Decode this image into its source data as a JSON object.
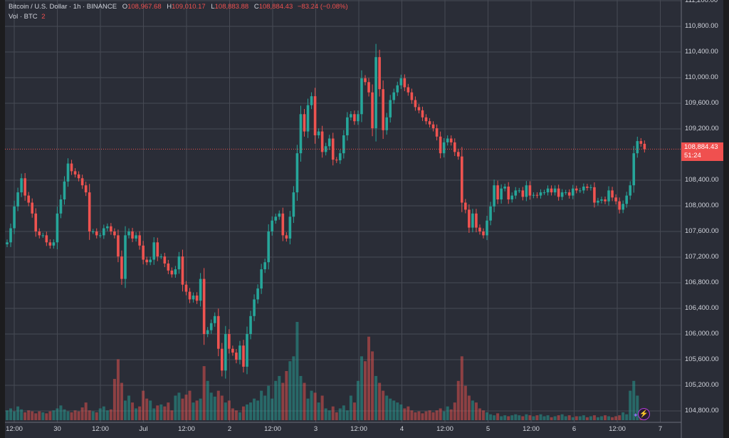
{
  "legend": {
    "symbol": "Bitcoin / U.S. Dollar · 1h · BINANCE",
    "o_label": "O",
    "o": "108,967.68",
    "h_label": "H",
    "h": "109,010.17",
    "l_label": "L",
    "l": "108,883.88",
    "c_label": "C",
    "c": "108,884.43",
    "change": "−83.24 (−0.08%)",
    "vol_label": "Vol · BTC",
    "vol_value": "2"
  },
  "price_tag": {
    "price": "108,884.43",
    "countdown": "51:24"
  },
  "colors": {
    "up": "#26a69a",
    "down": "#ef5350",
    "background": "#2a2d37",
    "grid": "#474a54",
    "assistant_icon": "#b13ad9"
  },
  "icons": {
    "assistant": "lightning-bolt-icon"
  },
  "chart_data": {
    "type": "candlestick",
    "interval": "1h",
    "grid": true,
    "y_ticks": [
      "111,200.00",
      "110,800.00",
      "110,400.00",
      "110,000.00",
      "109,600.00",
      "109,200.00",
      "108,400.00",
      "108,000.00",
      "107,600.00",
      "107,200.00",
      "106,800.00",
      "106,400.00",
      "106,000.00",
      "105,600.00",
      "105,200.00",
      "104,800.00"
    ],
    "x_ticks": [
      "12:00",
      "30",
      "12:00",
      "Jul",
      "12:00",
      "2",
      "12:00",
      "3",
      "12:00",
      "4",
      "12:00",
      "5",
      "12:00",
      "6",
      "12:00",
      "7"
    ],
    "ylim": [
      104600,
      111200
    ],
    "first_open": 107400,
    "close": [
      107430,
      107650,
      107990,
      108210,
      108430,
      108160,
      108050,
      107880,
      107600,
      107540,
      107540,
      107430,
      107380,
      107430,
      107880,
      108100,
      108380,
      108660,
      108540,
      108490,
      108430,
      108320,
      108210,
      107600,
      107600,
      107540,
      107540,
      107650,
      107680,
      107600,
      107540,
      107210,
      106860,
      107540,
      107600,
      107490,
      107540,
      107380,
      107160,
      107120,
      107160,
      107430,
      107210,
      107210,
      107100,
      106990,
      106930,
      107010,
      107210,
      106770,
      106660,
      106540,
      106600,
      106520,
      106860,
      106000,
      106060,
      106170,
      106280,
      105770,
      105430,
      106000,
      105770,
      105710,
      105600,
      105820,
      105490,
      106000,
      106280,
      106540,
      106710,
      107010,
      107120,
      107600,
      107770,
      107830,
      107880,
      107540,
      107490,
      107830,
      108210,
      108820,
      109430,
      109160,
      109570,
      109710,
      109100,
      109160,
      108840,
      108930,
      109050,
      108720,
      108710,
      108820,
      109100,
      109380,
      109430,
      109320,
      109430,
      109990,
      109930,
      109770,
      109210,
      110320,
      109820,
      109180,
      109380,
      109650,
      109770,
      109880,
      109990,
      109850,
      109770,
      109650,
      109540,
      109490,
      109380,
      109320,
      109270,
      109210,
      109080,
      108820,
      108990,
      109050,
      108990,
      108840,
      108770,
      108050,
      107940,
      107660,
      107880,
      107660,
      107600,
      107540,
      107770,
      107990,
      108320,
      108100,
      108270,
      108300,
      108100,
      108160,
      108240,
      108240,
      108140,
      108320,
      108160,
      108170,
      108160,
      108210,
      108210,
      108270,
      108210,
      108270,
      108140,
      108210,
      108210,
      108160,
      108270,
      108240,
      108240,
      108300,
      108280,
      108290,
      108050,
      108080,
      108100,
      108070,
      108240,
      108130,
      108070,
      107940,
      108030,
      108160,
      108320,
      108820,
      109010,
      108967.68,
      108884.43
    ],
    "volume_relative": [
      10,
      12,
      9,
      14,
      11,
      8,
      10,
      9,
      7,
      9,
      8,
      7,
      9,
      10,
      12,
      15,
      11,
      9,
      8,
      10,
      9,
      13,
      18,
      10,
      9,
      8,
      12,
      14,
      10,
      11,
      42,
      62,
      38,
      20,
      25,
      18,
      12,
      14,
      30,
      22,
      20,
      12,
      15,
      16,
      14,
      18,
      10,
      25,
      28,
      22,
      26,
      30,
      18,
      20,
      22,
      55,
      40,
      28,
      24,
      30,
      25,
      18,
      20,
      12,
      10,
      8,
      14,
      16,
      18,
      22,
      20,
      30,
      25,
      35,
      22,
      40,
      45,
      38,
      50,
      60,
      65,
      100,
      45,
      38,
      22,
      30,
      28,
      18,
      25,
      12,
      10,
      14,
      8,
      12,
      15,
      10,
      25,
      18,
      40,
      65,
      60,
      85,
      70,
      45,
      38,
      30,
      25,
      22,
      20,
      18,
      16,
      12,
      14,
      10,
      8,
      9,
      7,
      9,
      10,
      8,
      10,
      12,
      9,
      14,
      11,
      18,
      40,
      65,
      35,
      25,
      20,
      18,
      12,
      10,
      8,
      6,
      5,
      7,
      4,
      5,
      4,
      5,
      6,
      5,
      4,
      6,
      5,
      4,
      5,
      6,
      4,
      5,
      3,
      4,
      5,
      6,
      4,
      5,
      3,
      4,
      4,
      5,
      3,
      4,
      5,
      3,
      4,
      5,
      4,
      3,
      4,
      5,
      8,
      6,
      30,
      40,
      25,
      8,
      3
    ],
    "last_price": 108884.43
  }
}
